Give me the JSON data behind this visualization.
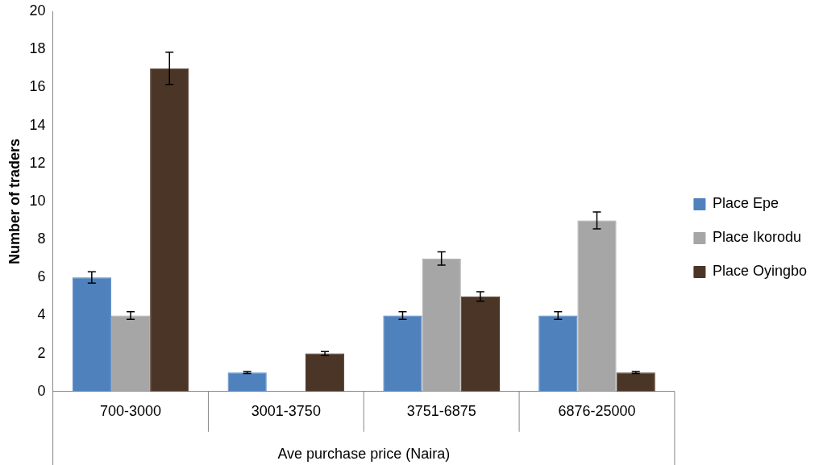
{
  "chart_data": {
    "type": "bar",
    "xlabel": "Ave purchase price (Naira)",
    "ylabel": "Number of traders",
    "categories": [
      "700-3000",
      "3001-3750",
      "3751-6875",
      "6876-25000"
    ],
    "series": [
      {
        "name": "Place Epe",
        "color": "#4f81bd",
        "values": [
          6,
          1,
          4,
          4
        ],
        "errors": [
          0.3,
          0.05,
          0.2,
          0.2
        ]
      },
      {
        "name": "Place Ikorodu",
        "color": "#a6a6a6",
        "values": [
          4,
          0,
          7,
          9
        ],
        "errors": [
          0.2,
          null,
          0.35,
          0.45
        ]
      },
      {
        "name": "Place Oyingbo",
        "color": "#4a3526",
        "values": [
          17,
          2,
          5,
          1
        ],
        "errors": [
          0.85,
          0.1,
          0.25,
          0.05
        ]
      }
    ],
    "ylim": [
      0,
      20
    ],
    "yticks": [
      0,
      2,
      4,
      6,
      8,
      10,
      12,
      14,
      16,
      18,
      20
    ],
    "grid": false,
    "legend": "right"
  }
}
